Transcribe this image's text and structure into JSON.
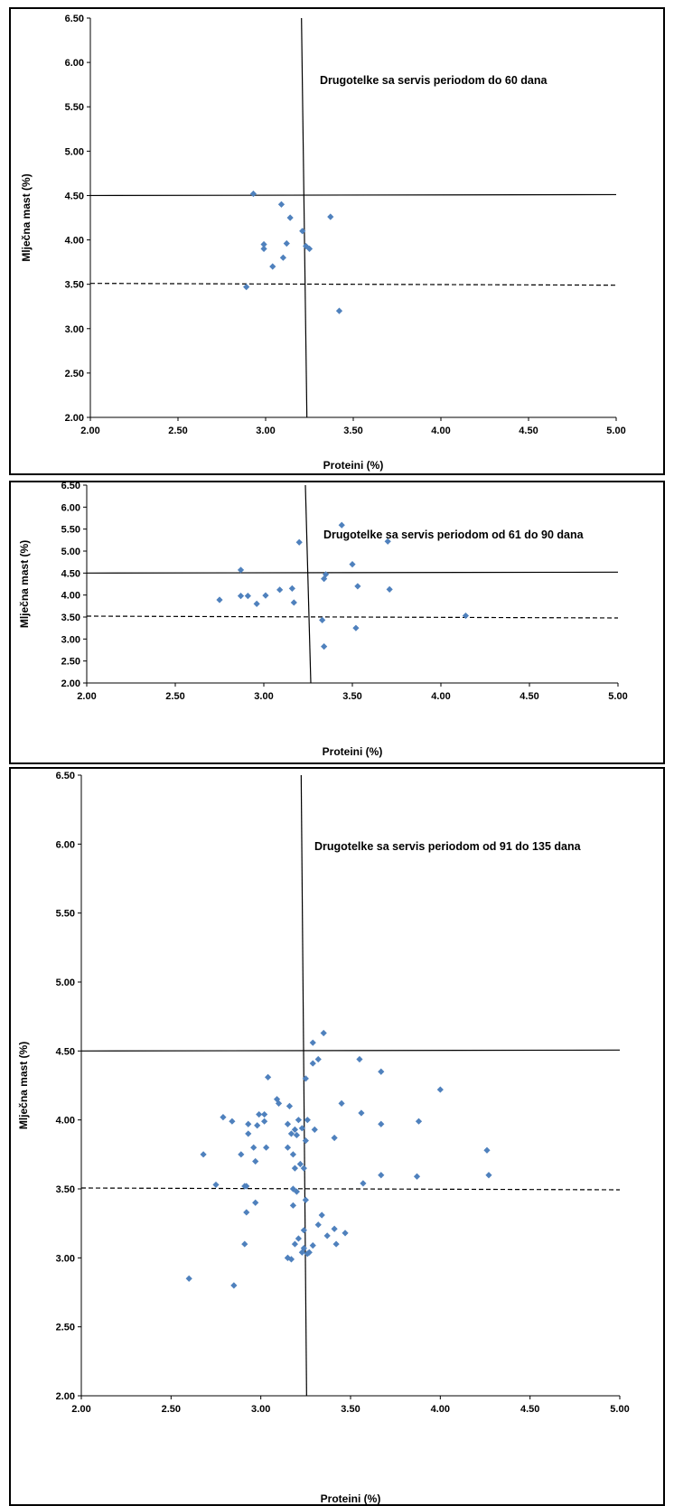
{
  "chart_data": [
    {
      "type": "scatter",
      "annotation": "Drugotelke sa servis periodom do 60 dana",
      "xlabel": "Proteini (%)",
      "ylabel": "Mlječna mast (%)",
      "xlim": [
        2.0,
        5.0
      ],
      "ylim": [
        2.0,
        6.5
      ],
      "x_ticks": [
        "2.00",
        "2.50",
        "3.00",
        "3.50",
        "4.00",
        "4.50",
        "5.00"
      ],
      "y_ticks": [
        "2.00",
        "2.50",
        "3.00",
        "3.50",
        "4.00",
        "4.50",
        "5.00",
        "5.50",
        "6.00",
        "6.50"
      ],
      "reference_lines": {
        "horizontal_solid": 4.5,
        "horizontal_dashed": 3.5,
        "vertical_solid": 3.22
      },
      "marker_color": "#4F81BD",
      "points": [
        [
          2.93,
          4.52
        ],
        [
          3.09,
          4.4
        ],
        [
          3.14,
          4.25
        ],
        [
          3.37,
          4.26
        ],
        [
          3.21,
          4.1
        ],
        [
          3.12,
          3.96
        ],
        [
          2.99,
          3.95
        ],
        [
          3.23,
          3.93
        ],
        [
          3.25,
          3.9
        ],
        [
          2.99,
          3.9
        ],
        [
          3.1,
          3.8
        ],
        [
          3.04,
          3.7
        ],
        [
          2.89,
          3.47
        ],
        [
          3.42,
          3.2
        ]
      ]
    },
    {
      "type": "scatter",
      "annotation": "Drugotelke sa servis periodom od 61 do 90 dana",
      "xlabel": "Proteini (%)",
      "ylabel": "Mlječna mast (%)",
      "xlim": [
        2.0,
        5.0
      ],
      "ylim": [
        2.0,
        6.5
      ],
      "x_ticks": [
        "2.00",
        "2.50",
        "3.00",
        "3.50",
        "4.00",
        "4.50",
        "5.00"
      ],
      "y_ticks": [
        "2.00",
        "2.50",
        "3.00",
        "3.50",
        "4.00",
        "4.50",
        "5.00",
        "5.50",
        "6.00",
        "6.50"
      ],
      "reference_lines": {
        "horizontal_solid": 4.5,
        "horizontal_dashed": 3.5,
        "vertical_solid": 3.25
      },
      "marker_color": "#4F81BD",
      "points": [
        [
          3.44,
          5.59
        ],
        [
          3.7,
          5.22
        ],
        [
          3.2,
          5.2
        ],
        [
          3.5,
          4.7
        ],
        [
          2.87,
          4.57
        ],
        [
          3.35,
          4.47
        ],
        [
          3.34,
          4.37
        ],
        [
          3.53,
          4.2
        ],
        [
          3.71,
          4.13
        ],
        [
          3.16,
          4.15
        ],
        [
          3.09,
          4.12
        ],
        [
          2.87,
          3.98
        ],
        [
          2.91,
          3.98
        ],
        [
          3.01,
          3.99
        ],
        [
          2.75,
          3.89
        ],
        [
          3.17,
          3.83
        ],
        [
          2.96,
          3.8
        ],
        [
          4.14,
          3.53
        ],
        [
          3.33,
          3.43
        ],
        [
          3.52,
          3.25
        ],
        [
          3.34,
          2.83
        ]
      ]
    },
    {
      "type": "scatter",
      "annotation": "Drugotelke sa servis periodom  od 91 do  135 dana",
      "xlabel": "Proteini (%)",
      "ylabel": "Mlječna mast (%)",
      "xlim": [
        2.0,
        5.0
      ],
      "ylim": [
        2.0,
        6.5
      ],
      "x_ticks": [
        "2.00",
        "2.50",
        "3.00",
        "3.50",
        "4.00",
        "4.50",
        "5.00"
      ],
      "y_ticks": [
        "2.00",
        "2.50",
        "3.00",
        "3.50",
        "4.00",
        "4.50",
        "5.00",
        "5.50",
        "6.00",
        "6.50"
      ],
      "reference_lines": {
        "horizontal_solid": 4.5,
        "horizontal_dashed": 3.5,
        "vertical_solid": 3.24
      },
      "marker_color": "#4F81BD",
      "points": [
        [
          3.35,
          4.63
        ],
        [
          3.29,
          4.56
        ],
        [
          3.55,
          4.44
        ],
        [
          3.32,
          4.44
        ],
        [
          3.29,
          4.41
        ],
        [
          3.67,
          4.35
        ],
        [
          3.04,
          4.31
        ],
        [
          3.25,
          4.3
        ],
        [
          4.0,
          4.22
        ],
        [
          3.09,
          4.15
        ],
        [
          3.1,
          4.12
        ],
        [
          3.45,
          4.12
        ],
        [
          3.16,
          4.1
        ],
        [
          3.56,
          4.05
        ],
        [
          2.99,
          4.04
        ],
        [
          3.02,
          4.04
        ],
        [
          2.79,
          4.02
        ],
        [
          3.21,
          4.0
        ],
        [
          3.26,
          4.0
        ],
        [
          2.84,
          3.99
        ],
        [
          3.02,
          3.99
        ],
        [
          3.88,
          3.99
        ],
        [
          2.93,
          3.97
        ],
        [
          3.15,
          3.97
        ],
        [
          3.67,
          3.97
        ],
        [
          2.98,
          3.96
        ],
        [
          3.19,
          3.93
        ],
        [
          3.23,
          3.94
        ],
        [
          3.3,
          3.93
        ],
        [
          3.17,
          3.9
        ],
        [
          2.93,
          3.9
        ],
        [
          3.2,
          3.89
        ],
        [
          3.41,
          3.87
        ],
        [
          3.25,
          3.85
        ],
        [
          2.96,
          3.8
        ],
        [
          3.03,
          3.8
        ],
        [
          3.15,
          3.8
        ],
        [
          4.26,
          3.78
        ],
        [
          2.68,
          3.75
        ],
        [
          2.89,
          3.75
        ],
        [
          3.18,
          3.75
        ],
        [
          2.97,
          3.7
        ],
        [
          3.22,
          3.68
        ],
        [
          3.24,
          3.65
        ],
        [
          3.19,
          3.65
        ],
        [
          3.67,
          3.6
        ],
        [
          3.87,
          3.59
        ],
        [
          4.27,
          3.6
        ],
        [
          3.57,
          3.54
        ],
        [
          2.75,
          3.53
        ],
        [
          2.91,
          3.52
        ],
        [
          2.92,
          3.52
        ],
        [
          3.18,
          3.5
        ],
        [
          3.2,
          3.48
        ],
        [
          2.97,
          3.4
        ],
        [
          3.25,
          3.42
        ],
        [
          3.18,
          3.38
        ],
        [
          2.92,
          3.33
        ],
        [
          3.34,
          3.31
        ],
        [
          3.32,
          3.24
        ],
        [
          3.41,
          3.21
        ],
        [
          3.47,
          3.18
        ],
        [
          3.37,
          3.16
        ],
        [
          3.24,
          3.2
        ],
        [
          3.21,
          3.14
        ],
        [
          2.91,
          3.1
        ],
        [
          3.19,
          3.1
        ],
        [
          3.29,
          3.09
        ],
        [
          3.42,
          3.1
        ],
        [
          3.24,
          3.07
        ],
        [
          3.27,
          3.04
        ],
        [
          3.23,
          3.04
        ],
        [
          3.26,
          3.03
        ],
        [
          3.15,
          3.0
        ],
        [
          3.17,
          2.99
        ],
        [
          3.15,
          3.0
        ],
        [
          2.6,
          2.85
        ],
        [
          2.85,
          2.8
        ]
      ]
    }
  ]
}
